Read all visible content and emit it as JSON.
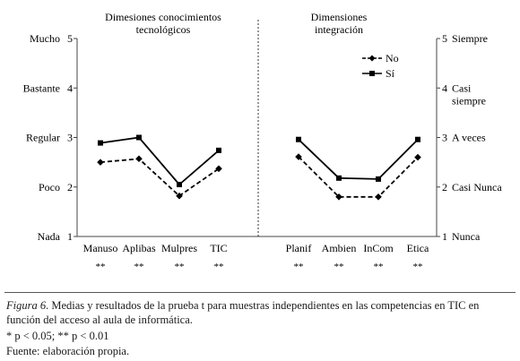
{
  "chart_data": {
    "type": "line",
    "panels": [
      {
        "title_lines": [
          "Dimesiones conocimientos",
          "tecnológicos"
        ],
        "categories": [
          "Manuso",
          "Aplibas",
          "Mulpres",
          "TIC"
        ],
        "significance": [
          "**",
          "**",
          "**",
          "**"
        ],
        "series": [
          {
            "name": "No",
            "values": [
              2.5,
              2.57,
              1.82,
              2.37
            ]
          },
          {
            "name": "Sí",
            "values": [
              2.89,
              3.0,
              2.05,
              2.74
            ]
          }
        ]
      },
      {
        "title_lines": [
          "Dimensiones",
          "integración"
        ],
        "categories": [
          "Planif",
          "Ambien",
          "InCom",
          "Etica"
        ],
        "significance": [
          "**",
          "**",
          "**",
          "**"
        ],
        "series": [
          {
            "name": "No",
            "values": [
              2.61,
              1.8,
              1.8,
              2.6
            ]
          },
          {
            "name": "Sí",
            "values": [
              2.96,
              2.18,
              2.16,
              2.96
            ]
          }
        ]
      }
    ],
    "ylim": [
      1,
      5
    ],
    "y_ticks": [
      1,
      2,
      3,
      4,
      5
    ],
    "left_labels": [
      "Nada",
      "Poco",
      "Regular",
      "Bastante",
      "Mucho"
    ],
    "right_labels": [
      [
        "1",
        "Nunca"
      ],
      [
        "2",
        "Casi Nunca"
      ],
      [
        "3",
        "A veces"
      ],
      [
        "4",
        "Casi",
        "siempre"
      ],
      [
        "5",
        "Siempre"
      ]
    ],
    "legend": {
      "placement": "top-right",
      "entries": [
        "No",
        "Sí"
      ]
    },
    "grid": false
  },
  "caption": {
    "figure_label": "Figura 6",
    "text": ". Medias y resultados de la prueba t para muestras independientes en las competencias en TIC en función del acceso al aula de informática.",
    "significance_note": "* p < 0.05; ** p < 0.01",
    "source": "Fuente: elaboración propia."
  }
}
